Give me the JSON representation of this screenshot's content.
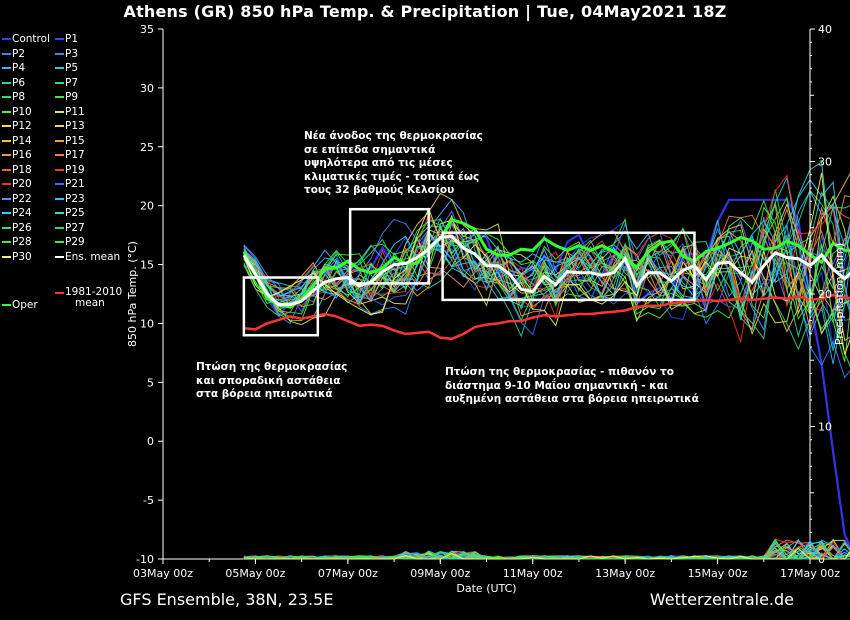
{
  "title": "Athens  (GR)  850 hPa Temp. & Precipitation | Tue, 04May2021 18Z",
  "footer": {
    "model": "GFS Ensemble, 38N, 23.5E",
    "site": "Wetterzentrale.de"
  },
  "colors": {
    "background": "#000000",
    "ensMean": "#ffffff",
    "oper": "#33ff33",
    "climate": "#ff3333",
    "box": "#ffffff"
  },
  "legend": [
    {
      "label": "Control",
      "color": "#3a3aff"
    },
    {
      "label": "P1",
      "color": "#1f4fff"
    },
    {
      "label": "P2",
      "color": "#4e7cff"
    },
    {
      "label": "P3",
      "color": "#2a8cff"
    },
    {
      "label": "P4",
      "color": "#40b0ff"
    },
    {
      "label": "P5",
      "color": "#30c8e0"
    },
    {
      "label": "P6",
      "color": "#2ad0b0"
    },
    {
      "label": "P7",
      "color": "#28d890"
    },
    {
      "label": "P8",
      "color": "#20e070"
    },
    {
      "label": "P9",
      "color": "#40ea40"
    },
    {
      "label": "P10",
      "color": "#60f020"
    },
    {
      "label": "P11",
      "color": "#c8f040"
    },
    {
      "label": "P12",
      "color": "#f0e060"
    },
    {
      "label": "P13",
      "color": "#f0d070"
    },
    {
      "label": "P14",
      "color": "#f0c040"
    },
    {
      "label": "P15",
      "color": "#f0a030"
    },
    {
      "label": "P16",
      "color": "#f09060"
    },
    {
      "label": "P17",
      "color": "#f07a50"
    },
    {
      "label": "P18",
      "color": "#f06040"
    },
    {
      "label": "P19",
      "color": "#e04030"
    },
    {
      "label": "P20",
      "color": "#ff2a2a"
    },
    {
      "label": "P21",
      "color": "#3070ff"
    },
    {
      "label": "P22",
      "color": "#5090ff"
    },
    {
      "label": "P23",
      "color": "#40b8ff"
    },
    {
      "label": "P24",
      "color": "#30d0ff"
    },
    {
      "label": "P25",
      "color": "#30e0c0"
    },
    {
      "label": "P26",
      "color": "#30e090"
    },
    {
      "label": "P27",
      "color": "#30d870"
    },
    {
      "label": "P28",
      "color": "#60e040"
    },
    {
      "label": "P29",
      "color": "#40f040"
    },
    {
      "label": "P30",
      "color": "#f8f060"
    },
    {
      "label": "Ens. mean",
      "color": "#ffffff"
    },
    {
      "label": "1981-2010\nmean",
      "color": "#ff3333"
    },
    {
      "label": "Oper",
      "color": "#33ff33"
    }
  ],
  "annotations": [
    {
      "text": "Νέα άνοδος της θερμοκρασίας\nσε επίπεδα σημαντικά\nυψηλότερα από τις μέσες\nκλιματικές τιμές - τοπικά έως\nτους 32 βαθμούς Κελσίου"
    },
    {
      "text": "Πτώση της θερμοκρασίας\nκαι σποραδική αστάθεια\nστα βόρεια ηπειρωτικά"
    },
    {
      "text": "Πτώση της θερμοκρασίας - πιθανόν το\nδιάστημα 9-10 Μαΐου σημαντική - και\nαυξημένη αστάθεια στα βόρεια ηπειρωτικά"
    }
  ],
  "chart_data": {
    "type": "line",
    "title": "Athens  (GR)  850 hPa Temp. & Precipitation | Tue, 04May2021 18Z",
    "xlabel": "Date (UTC)",
    "ylabel": "850 hPa Temp. (°C)",
    "y2label": "Precipitation (mm)",
    "xlim": [
      0,
      14
    ],
    "ylim": [
      -10,
      35
    ],
    "y2lim": [
      0,
      40
    ],
    "xticks": [
      {
        "x": 0,
        "label": "03May 00z"
      },
      {
        "x": 2,
        "label": "05May 00z"
      },
      {
        "x": 4,
        "label": "07May 00z"
      },
      {
        "x": 6,
        "label": "09May 00z"
      },
      {
        "x": 8,
        "label": "11May 00z"
      },
      {
        "x": 10,
        "label": "13May 00z"
      },
      {
        "x": 12,
        "label": "15May 00z"
      },
      {
        "x": 14,
        "label": "17May 00z"
      }
    ],
    "yticks": [
      -10,
      -5,
      0,
      5,
      10,
      15,
      20,
      25,
      30,
      35
    ],
    "y2ticks": [
      0,
      10,
      20,
      30,
      40
    ],
    "x_unit": "days since 03May 00z",
    "time_step_days": 0.25,
    "x_start": 1.75,
    "series": [
      {
        "name": "Ens. mean",
        "values": [
          15.8,
          14.2,
          12.5,
          11.6,
          11.6,
          11.9,
          12.8,
          13.5,
          13.8,
          13.9,
          13.2,
          13.5,
          14.4,
          15,
          15.1,
          15.6,
          16.3,
          17.3,
          17.4,
          16.4,
          15.9,
          14.9,
          14.9,
          14.2,
          12.9,
          12.7,
          14,
          13.3,
          14.4,
          14.3,
          14.3,
          14.1,
          14.3,
          15.5,
          13.2,
          14.3,
          14.3,
          13.6,
          14.5,
          14.9,
          13.7,
          15.1,
          15.2,
          14.3,
          13.5,
          14.9,
          16,
          15.6,
          15.5,
          14.9,
          15.8,
          14.6,
          13.8,
          14.7,
          13.9,
          13.8,
          13.1,
          12.6,
          11.9,
          11.4,
          11.3,
          11.2,
          10.3,
          10.4,
          10.6,
          10.3,
          10.5
        ]
      },
      {
        "name": "Oper",
        "values": [
          16.1,
          14.2,
          12.1,
          11.6,
          11.4,
          12.1,
          13.2,
          14.6,
          14.7,
          15.3,
          14.6,
          14.3,
          14.7,
          15.6,
          15.1,
          15.1,
          16.5,
          17.2,
          18.8,
          18.5,
          18,
          16.3,
          15.8,
          15.8,
          16.3,
          16.2,
          17.2,
          16.6,
          16.2,
          16.6,
          16.2,
          16.6,
          16.1,
          15.5,
          14.8,
          16.1,
          16.8,
          17,
          15.7,
          15.3,
          16.1,
          16.4,
          16.8,
          17.3,
          17,
          16.3,
          16.4,
          17,
          16.6,
          15.8,
          15.2,
          16.8,
          16.2,
          16.2,
          15.4,
          16.2,
          16,
          17.2,
          17.2,
          16.8,
          17.8,
          17.4,
          17.4,
          18,
          17.8,
          18.1,
          17.6
        ]
      },
      {
        "name": "1981-2010\nmean",
        "values": [
          9.6,
          9.5,
          10,
          10.3,
          10.6,
          10.4,
          10.6,
          10.8,
          10.6,
          10.2,
          9.8,
          9.9,
          9.8,
          9.4,
          9.1,
          9.2,
          9.3,
          8.8,
          8.7,
          9.1,
          9.7,
          9.9,
          10,
          10.2,
          10.2,
          10.5,
          10.7,
          10.6,
          10.7,
          10.8,
          10.8,
          10.9,
          11,
          11.1,
          11.4,
          11.5,
          11.5,
          11.7,
          11.8,
          11.9,
          12,
          11.9,
          12,
          12.1,
          12,
          12.1,
          12.2,
          12.1,
          12.3,
          12,
          12.1,
          12.4,
          12.2,
          12.1,
          12,
          12,
          12,
          11.9,
          11.8,
          11.6,
          11.5,
          11.5,
          11.3,
          11.2,
          11.1,
          11.2,
          11
        ]
      }
    ],
    "boxes": [
      {
        "x": [
          1.75,
          3.35
        ],
        "y": [
          9,
          13.9
        ]
      },
      {
        "x": [
          4.05,
          5.75
        ],
        "y": [
          13.4,
          19.7
        ]
      },
      {
        "x": [
          6.05,
          11.5
        ],
        "y": [
          12,
          17.7
        ]
      }
    ]
  }
}
